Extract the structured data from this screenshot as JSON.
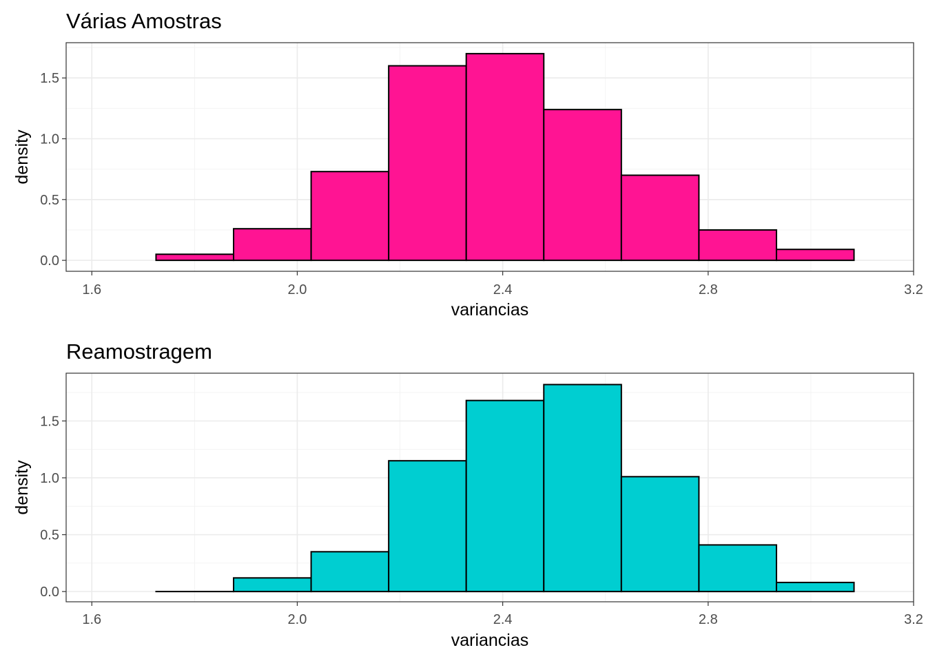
{
  "chart_data": [
    {
      "type": "bar",
      "title": "Várias Amostras",
      "xlabel": "variancias",
      "ylabel": "density",
      "fill": "#FF1493",
      "outline": "#000000",
      "xlim": [
        1.55,
        3.2
      ],
      "ylim": [
        -0.09,
        1.79
      ],
      "x_ticks": [
        1.6,
        2.0,
        2.4,
        2.8,
        3.2
      ],
      "x_tick_labels": [
        "1.6",
        "2.0",
        "2.4",
        "2.8",
        "3.2"
      ],
      "y_ticks": [
        0.0,
        0.5,
        1.0,
        1.5
      ],
      "y_tick_labels": [
        "0.0",
        "0.5",
        "1.0",
        "1.5"
      ],
      "bins": [
        {
          "x0": 1.725,
          "x1": 1.876,
          "density": 0.05
        },
        {
          "x0": 1.876,
          "x1": 2.027,
          "density": 0.26
        },
        {
          "x0": 2.027,
          "x1": 2.178,
          "density": 0.73
        },
        {
          "x0": 2.178,
          "x1": 2.329,
          "density": 1.6
        },
        {
          "x0": 2.329,
          "x1": 2.48,
          "density": 1.7
        },
        {
          "x0": 2.48,
          "x1": 2.631,
          "density": 1.24
        },
        {
          "x0": 2.631,
          "x1": 2.782,
          "density": 0.7
        },
        {
          "x0": 2.782,
          "x1": 2.933,
          "density": 0.25
        },
        {
          "x0": 2.933,
          "x1": 3.084,
          "density": 0.09
        }
      ]
    },
    {
      "type": "bar",
      "title": "Reamostragem",
      "xlabel": "variancias",
      "ylabel": "density",
      "fill": "#00CED1",
      "outline": "#000000",
      "xlim": [
        1.55,
        3.2
      ],
      "ylim": [
        -0.09,
        1.92
      ],
      "x_ticks": [
        1.6,
        2.0,
        2.4,
        2.8,
        3.2
      ],
      "x_tick_labels": [
        "1.6",
        "2.0",
        "2.4",
        "2.8",
        "3.2"
      ],
      "y_ticks": [
        0.0,
        0.5,
        1.0,
        1.5
      ],
      "y_tick_labels": [
        "0.0",
        "0.5",
        "1.0",
        "1.5"
      ],
      "bins": [
        {
          "x0": 1.725,
          "x1": 1.876,
          "density": 0.0
        },
        {
          "x0": 1.876,
          "x1": 2.027,
          "density": 0.12
        },
        {
          "x0": 2.027,
          "x1": 2.178,
          "density": 0.35
        },
        {
          "x0": 2.178,
          "x1": 2.329,
          "density": 1.15
        },
        {
          "x0": 2.329,
          "x1": 2.48,
          "density": 1.68
        },
        {
          "x0": 2.48,
          "x1": 2.631,
          "density": 1.82
        },
        {
          "x0": 2.631,
          "x1": 2.782,
          "density": 1.01
        },
        {
          "x0": 2.782,
          "x1": 2.933,
          "density": 0.41
        },
        {
          "x0": 2.933,
          "x1": 3.084,
          "density": 0.08
        }
      ]
    }
  ]
}
